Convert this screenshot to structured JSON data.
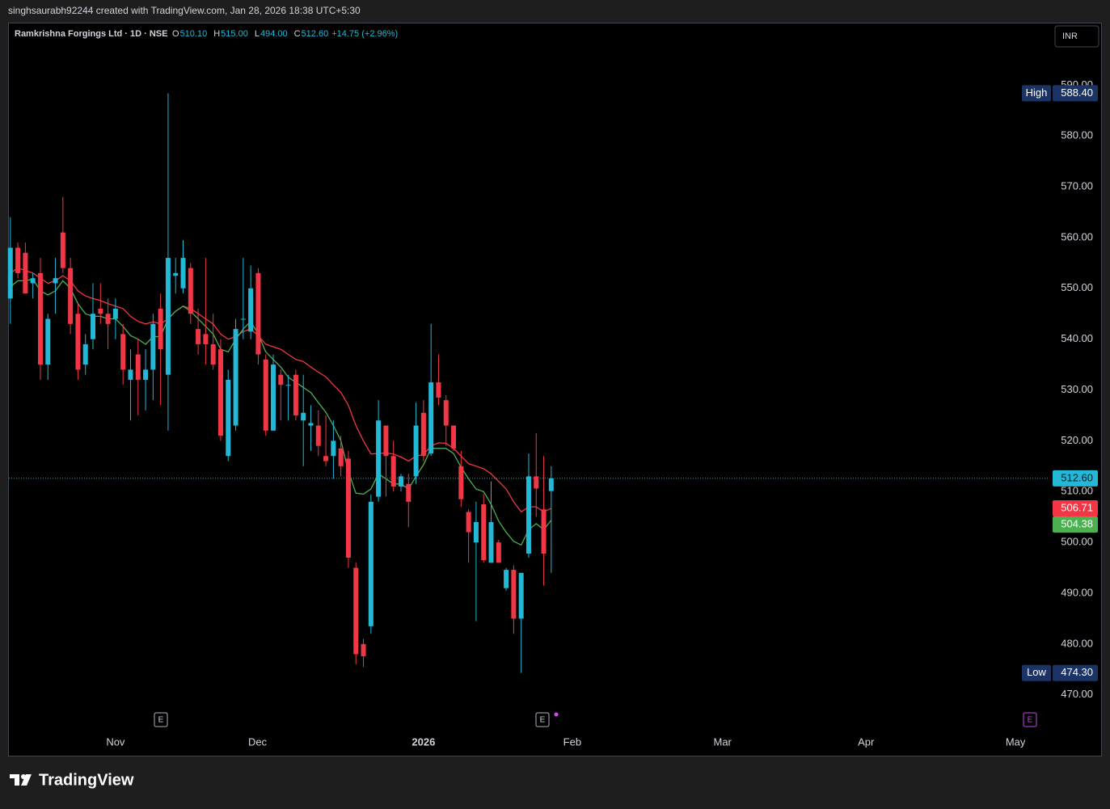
{
  "header": "singhsaurabh92244 created with TradingView.com, Jan 28, 2026 18:38 UTC+5:30",
  "footer": "TradingView",
  "chart_data": {
    "type": "candlestick",
    "title": "Ramkrishna Forgings Ltd · 1D · NSE",
    "legend": [
      {
        "key": "O",
        "text": "510.10"
      },
      {
        "key": "H",
        "text": "515.00"
      },
      {
        "key": "L",
        "text": "494.00"
      },
      {
        "key": "C",
        "text": "512.60"
      }
    ],
    "change": "+14.75 (+2.96%)",
    "currency": "INR",
    "up_color": "#22b8d6",
    "down_color": "#f23645",
    "open": [
      548,
      558,
      557,
      551,
      553,
      535,
      551,
      561,
      554,
      545,
      535,
      540,
      546,
      545,
      544,
      541,
      532,
      537,
      532,
      534,
      546,
      533,
      552.5,
      550,
      554,
      542,
      541,
      539,
      538,
      517,
      523,
      544,
      541.5,
      553,
      536,
      522,
      533,
      531,
      533,
      524,
      523,
      523,
      517,
      517,
      518.5,
      516.5,
      495,
      480,
      483.5,
      509,
      523,
      517,
      511,
      511.5,
      513,
      525.5,
      517.5,
      531.5,
      528,
      523,
      515,
      506,
      500,
      507.5,
      496,
      500,
      491,
      494.6,
      485,
      497.8,
      513,
      506.5,
      510.1
    ],
    "high": [
      564,
      559,
      559,
      553,
      556,
      545,
      556,
      568,
      556,
      547,
      541,
      551,
      551,
      548,
      548,
      543,
      538,
      540,
      538,
      545,
      549,
      588.4,
      556,
      559.5,
      555,
      546,
      556,
      545,
      540,
      534,
      544,
      556,
      554.5,
      554,
      537,
      537,
      534,
      533,
      534,
      533,
      527,
      526,
      525,
      524,
      521,
      518,
      496,
      481,
      509.4,
      528,
      523,
      520,
      513.5,
      513.5,
      527.5,
      528,
      543,
      537,
      529,
      523,
      518,
      506.5,
      508,
      509.5,
      512,
      500.5,
      495,
      495.5,
      494,
      517.5,
      521.5,
      517,
      515
    ],
    "low": [
      543,
      552,
      549,
      548,
      532,
      532,
      545,
      553,
      541,
      532,
      533,
      538,
      543,
      538,
      540,
      531,
      524,
      525,
      526,
      528,
      527,
      522,
      549,
      549,
      543,
      537,
      535,
      534,
      520,
      516,
      522,
      540,
      540,
      535,
      521,
      522,
      524,
      524,
      524,
      515,
      518,
      517,
      515,
      512.5,
      513,
      495,
      476,
      475.5,
      482,
      508,
      509,
      510,
      510,
      503,
      511.5,
      516,
      517,
      527,
      519,
      518,
      507,
      496,
      484.5,
      496,
      496,
      496,
      490.5,
      482,
      474.3,
      497,
      505,
      491.5,
      494
    ],
    "close": [
      558,
      553,
      549,
      552,
      535,
      544,
      552,
      554,
      543,
      534,
      539,
      545,
      545,
      543,
      546,
      534,
      534,
      532,
      534,
      543,
      538,
      556,
      553,
      556,
      545,
      539,
      539,
      535,
      521,
      532,
      542,
      544,
      550,
      537,
      522,
      535,
      531,
      531,
      525,
      525.5,
      523.5,
      519,
      516,
      520,
      515,
      497,
      478,
      477.6,
      508,
      524,
      517,
      511,
      513,
      508,
      523,
      517,
      531.5,
      528.5,
      523,
      518.5,
      508.5,
      502,
      504,
      496.5,
      504,
      496,
      494.6,
      485,
      494,
      513,
      510.6,
      497.8,
      512.6
    ],
    "lines": [
      {
        "color": "#f23645",
        "values": [
          553,
          554,
          553.5,
          553,
          552,
          551,
          551.5,
          552.5,
          551.5,
          549.5,
          548.5,
          548,
          547.6,
          547,
          546.5,
          546,
          544.5,
          543.5,
          543,
          543.4,
          543,
          544,
          545.5,
          546.5,
          546,
          545,
          544,
          543,
          541,
          540,
          540.5,
          541.5,
          542,
          540.7,
          539,
          538.5,
          538,
          537,
          536,
          535.6,
          534.5,
          533.5,
          532.6,
          531,
          529.5,
          527,
          523,
          520,
          517.4,
          517.5,
          517.6,
          517.4,
          516.8,
          516,
          517,
          517.3,
          519,
          519.6,
          519.5,
          518.5,
          517,
          515.5,
          515,
          514.5,
          513.5,
          512,
          510.5,
          508,
          506,
          507,
          507,
          506,
          506.71
        ]
      },
      {
        "color": "#4caf50",
        "values": [
          550.3,
          551.5,
          551.5,
          551.8,
          549.5,
          548.7,
          549.5,
          551.5,
          550,
          547,
          545,
          544.5,
          544.5,
          544,
          544,
          542.5,
          540.7,
          540,
          539,
          540.5,
          540.5,
          544,
          545.5,
          546.5,
          545.5,
          544,
          542.5,
          541,
          538,
          537.5,
          540,
          542,
          543.5,
          541,
          537.5,
          536,
          534.5,
          532.5,
          531.5,
          530.5,
          529.5,
          527.5,
          525.6,
          523,
          520,
          514,
          509.7,
          509.5,
          510.5,
          513.5,
          512.5,
          511.5,
          511.5,
          510.5,
          513,
          515.3,
          518.5,
          518.5,
          518.5,
          517.5,
          514.8,
          512.5,
          510.5,
          510,
          507.5,
          504.2,
          502,
          500.2,
          499.5,
          502.5,
          503.7,
          502.5,
          504.38
        ]
      }
    ],
    "price_line": 512.6,
    "price_tags": [
      {
        "label": "High",
        "value": 588.4,
        "text": "588.40",
        "color": "#1c3366",
        "text_color": "#ffffff"
      },
      {
        "label": "Low",
        "value": 474.3,
        "text": "474.30",
        "color": "#1c3366",
        "text_color": "#ffffff"
      },
      {
        "value": 512.6,
        "text": "512.60",
        "color": "#22b8d6",
        "text_color": "#0b1b22"
      },
      {
        "value": 506.71,
        "text": "506.71",
        "color": "#f23645",
        "text_color": "#ffffff"
      },
      {
        "value": 504.38,
        "text": "504.38",
        "color": "#4caf50",
        "text_color": "#ffffff"
      }
    ],
    "ylim": [
      462.8,
      602.3
    ],
    "yticks": [
      {
        "value": 470,
        "label": "470.00"
      },
      {
        "value": 480,
        "label": "480.00"
      },
      {
        "value": 490,
        "label": "490.00"
      },
      {
        "value": 500,
        "label": "500.00"
      },
      {
        "value": 510,
        "label": "510.00"
      },
      {
        "value": 520,
        "label": "520.00"
      },
      {
        "value": 530,
        "label": "530.00"
      },
      {
        "value": 540,
        "label": "540.00"
      },
      {
        "value": 550,
        "label": "550.00"
      },
      {
        "value": 560,
        "label": "560.00"
      },
      {
        "value": 570,
        "label": "570.00"
      },
      {
        "value": 580,
        "label": "580.00"
      },
      {
        "value": 590,
        "label": "590.00"
      }
    ],
    "xlim": [
      -0.3,
      138.2
    ],
    "xticks": [
      {
        "value": 14,
        "label": "Nov"
      },
      {
        "value": 32.9,
        "label": "Dec"
      },
      {
        "value": 55,
        "label": "2026"
      },
      {
        "value": 74.8,
        "label": "Feb"
      },
      {
        "value": 94.8,
        "label": "Mar"
      },
      {
        "value": 113.9,
        "label": "Apr"
      },
      {
        "value": 133.8,
        "label": "May"
      }
    ]
  }
}
